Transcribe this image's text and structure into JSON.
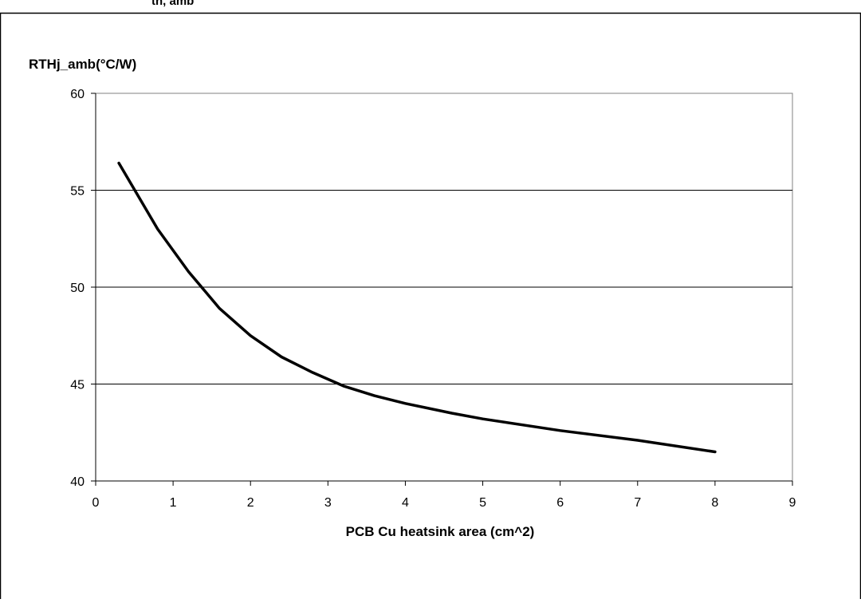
{
  "caption_fragment": "th, amb",
  "chart_data": {
    "type": "line",
    "ylabel": "RTHj_amb(°C/W)",
    "xlabel": "PCB Cu heatsink area (cm^2)",
    "xlim": [
      0,
      9
    ],
    "ylim": [
      40,
      60
    ],
    "xticks": [
      0,
      1,
      2,
      3,
      4,
      5,
      6,
      7,
      8,
      9
    ],
    "yticks": [
      40,
      45,
      50,
      55,
      60
    ],
    "grid": "horizontal",
    "legend": "none",
    "line_color": "#000000",
    "series": [
      {
        "x": [
          0.3,
          0.8,
          1.2,
          1.6,
          2.0,
          2.4,
          2.8,
          3.2,
          3.6,
          4.0,
          4.6,
          5.0,
          6.0,
          7.0,
          8.0
        ],
        "y": [
          56.4,
          53.0,
          50.8,
          48.9,
          47.5,
          46.4,
          45.6,
          44.9,
          44.4,
          44.0,
          43.5,
          43.2,
          42.6,
          42.1,
          41.5
        ]
      }
    ]
  }
}
